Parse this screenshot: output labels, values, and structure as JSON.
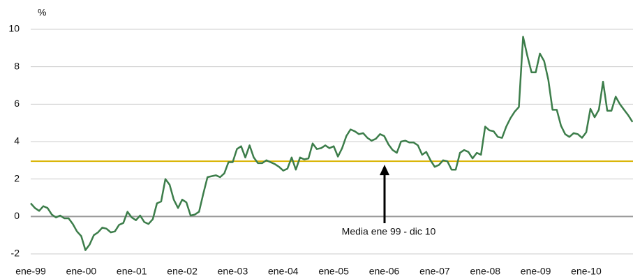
{
  "chart_data": {
    "type": "line",
    "y_unit_label": "%",
    "categories": [
      "ene-99",
      null,
      null,
      null,
      null,
      null,
      null,
      null,
      null,
      null,
      null,
      null,
      "ene-00",
      null,
      null,
      null,
      null,
      null,
      null,
      null,
      null,
      null,
      null,
      null,
      "ene-01",
      null,
      null,
      null,
      null,
      null,
      null,
      null,
      null,
      null,
      null,
      null,
      "ene-02",
      null,
      null,
      null,
      null,
      null,
      null,
      null,
      null,
      null,
      null,
      null,
      "ene-03",
      null,
      null,
      null,
      null,
      null,
      null,
      null,
      null,
      null,
      null,
      null,
      "ene-04",
      null,
      null,
      null,
      null,
      null,
      null,
      null,
      null,
      null,
      null,
      null,
      "ene-05",
      null,
      null,
      null,
      null,
      null,
      null,
      null,
      null,
      null,
      null,
      null,
      "ene-06",
      null,
      null,
      null,
      null,
      null,
      null,
      null,
      null,
      null,
      null,
      null,
      "ene-07",
      null,
      null,
      null,
      null,
      null,
      null,
      null,
      null,
      null,
      null,
      null,
      "ene-08",
      null,
      null,
      null,
      null,
      null,
      null,
      null,
      null,
      null,
      null,
      null,
      "ene-09",
      null,
      null,
      null,
      null,
      null,
      null,
      null,
      null,
      null,
      null,
      null,
      "ene-10",
      null,
      null,
      null,
      null,
      null,
      null,
      null,
      null,
      null,
      null,
      null
    ],
    "series": [
      {
        "color": "#3c7d4a",
        "values": [
          0.7,
          0.45,
          0.3,
          0.55,
          0.45,
          0.1,
          -0.05,
          0.05,
          -0.1,
          -0.1,
          -0.4,
          -0.8,
          -1.05,
          -1.8,
          -1.5,
          -1.0,
          -0.85,
          -0.6,
          -0.65,
          -0.85,
          -0.8,
          -0.45,
          -0.35,
          0.25,
          -0.05,
          -0.2,
          0.05,
          -0.3,
          -0.4,
          -0.15,
          0.7,
          0.8,
          2.0,
          1.7,
          0.9,
          0.45,
          0.9,
          0.75,
          0.05,
          0.1,
          0.25,
          1.2,
          2.1,
          2.15,
          2.2,
          2.1,
          2.3,
          2.9,
          2.9,
          3.6,
          3.75,
          3.15,
          3.8,
          3.15,
          2.85,
          2.85,
          3.0,
          2.9,
          2.8,
          2.65,
          2.45,
          2.55,
          3.15,
          2.5,
          3.15,
          3.05,
          3.1,
          3.9,
          3.6,
          3.65,
          3.8,
          3.65,
          3.75,
          3.2,
          3.65,
          4.3,
          4.65,
          4.55,
          4.4,
          4.45,
          4.2,
          4.05,
          4.15,
          4.4,
          4.3,
          3.85,
          3.55,
          3.4,
          4.0,
          4.05,
          3.95,
          3.95,
          3.8,
          3.3,
          3.45,
          3.0,
          2.65,
          2.75,
          3.0,
          2.95,
          2.5,
          2.5,
          3.4,
          3.55,
          3.45,
          3.1,
          3.4,
          3.3,
          4.8,
          4.6,
          4.55,
          4.25,
          4.2,
          4.8,
          5.25,
          5.6,
          5.85,
          9.6,
          8.6,
          7.7,
          7.7,
          8.7,
          8.3,
          7.3,
          5.7,
          5.7,
          4.85,
          4.4,
          4.25,
          4.45,
          4.4,
          4.2,
          4.5,
          5.75,
          5.3,
          5.7,
          7.2,
          5.65,
          5.65,
          6.4,
          6.0,
          5.7,
          5.4,
          5.05
        ]
      }
    ],
    "mean_line": {
      "value": 2.95,
      "label": "Media ene 99 - dic 10",
      "color": "#d9b300"
    },
    "ylim": [
      -2.5,
      10.5
    ],
    "yticks": [
      -2,
      0,
      2,
      4,
      6,
      8,
      10
    ],
    "grid": true
  }
}
